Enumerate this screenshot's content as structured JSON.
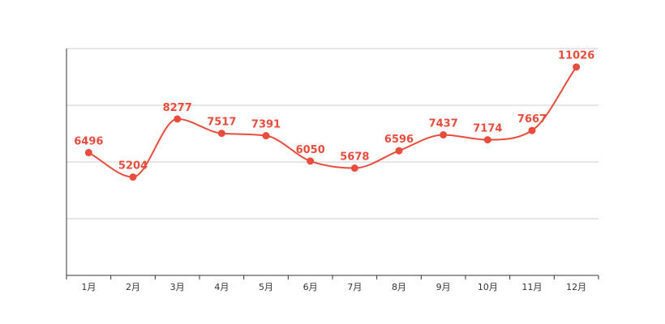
{
  "chart_data": {
    "type": "line",
    "categories": [
      "1月",
      "2月",
      "3月",
      "4月",
      "5月",
      "6月",
      "7月",
      "8月",
      "9月",
      "10月",
      "11月",
      "12月"
    ],
    "values": [
      6496,
      5204,
      8277,
      7517,
      7391,
      6050,
      5678,
      6596,
      7437,
      7174,
      7667,
      11026
    ],
    "value_labels": [
      "6496",
      "5204",
      "8277",
      "7517",
      "7391",
      "6050",
      "5678",
      "6596",
      "7437",
      "7174",
      "7667",
      "11026"
    ],
    "ylim": [
      0,
      12000
    ],
    "y_gridlines": [
      3000,
      6000,
      9000,
      12000
    ],
    "grid": true,
    "smooth": true,
    "color": "#e84c3d"
  }
}
